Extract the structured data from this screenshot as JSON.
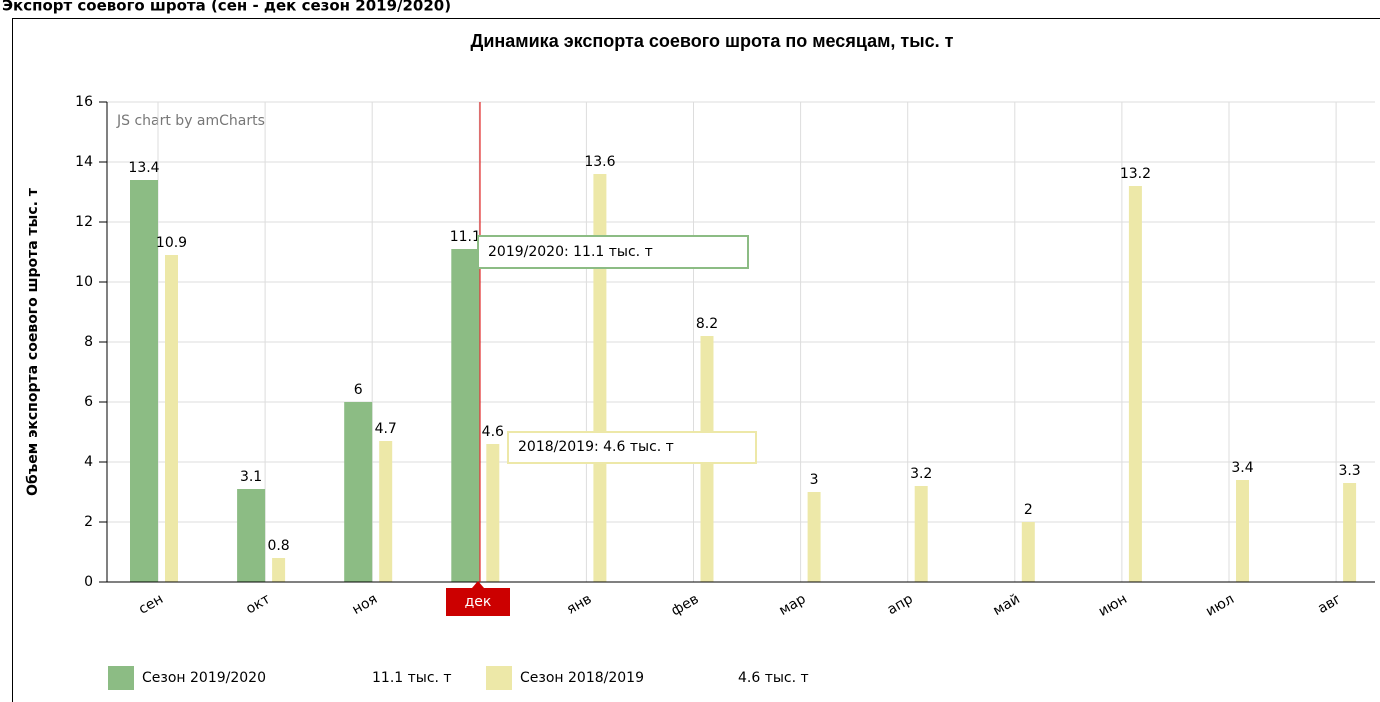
{
  "page_title": "Экспорт соевого шрота (сен - дек сезон 2019/2020)",
  "chart_data": {
    "type": "bar",
    "title": "Динамика экспорта соевого шрота по месяцам, тыс. т",
    "ylabel": "Объем экспорта соевого шрота тыс. т",
    "watermark": "JS chart by amCharts",
    "categories": [
      "сен",
      "окт",
      "ноя",
      "дек",
      "янв",
      "фев",
      "мар",
      "апр",
      "май",
      "июн",
      "июл",
      "авг"
    ],
    "series": [
      {
        "name": "Сезон 2019/2020",
        "color": "#8cbc84",
        "values": [
          13.4,
          3.1,
          6,
          11.1,
          null,
          null,
          null,
          null,
          null,
          null,
          null,
          null
        ]
      },
      {
        "name": "Сезон 2018/2019",
        "color": "#ede8a8",
        "values": [
          10.9,
          0.8,
          4.7,
          4.6,
          13.6,
          8.2,
          3,
          3.2,
          2,
          13.2,
          3.4,
          3.3
        ]
      }
    ],
    "legend_values": [
      "11.1 тыс. т",
      "4.6 тыс. т"
    ],
    "tooltips": [
      "2019/2020: 11.1 тыс. т",
      "2018/2019: 4.6 тыс. т"
    ],
    "ylim": [
      0,
      16
    ],
    "yticks": [
      0,
      2,
      4,
      6,
      8,
      10,
      12,
      14,
      16
    ],
    "grid": true
  }
}
